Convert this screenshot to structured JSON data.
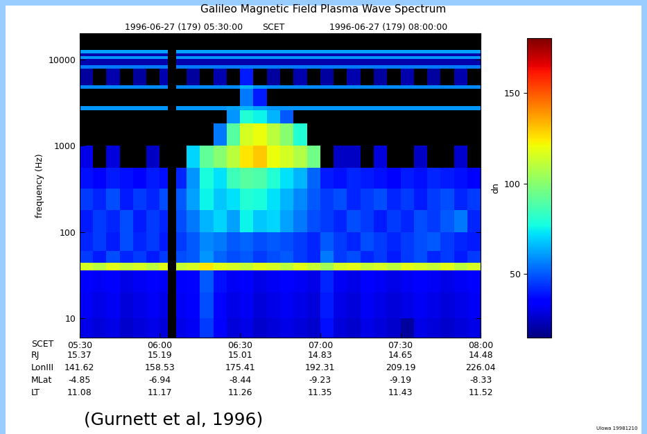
{
  "chart_data": {
    "type": "heatmap",
    "title": "Galileo Magnetic Field Plasma Wave Spectrum",
    "top_labels": [
      "1996-06-27 (179) 05:30:00",
      "SCET",
      "1996-06-27 (179) 08:00:00"
    ],
    "y_label": "frequency (Hz)",
    "log": "y",
    "grid": false,
    "xlim": [
      0,
      150
    ],
    "xticks": [
      {
        "value": 0,
        "label": "05:30"
      },
      {
        "value": 30,
        "label": "06:00"
      },
      {
        "value": 60,
        "label": "06:30"
      },
      {
        "value": 90,
        "label": "07:00"
      },
      {
        "value": 120,
        "label": "07:30"
      },
      {
        "value": 150,
        "label": "08:00"
      }
    ],
    "x_row_label": "SCET",
    "ylim": [
      6,
      20000
    ],
    "yticks": [
      10,
      100,
      1000,
      10000
    ],
    "x_edges": [
      0,
      5,
      10,
      15,
      20,
      25,
      30,
      33,
      36,
      40,
      45,
      50,
      55,
      60,
      65,
      70,
      75,
      80,
      85,
      90,
      95,
      100,
      105,
      110,
      115,
      120,
      125,
      130,
      135,
      140,
      145,
      150
    ],
    "y_edges": [
      6,
      10,
      20,
      36,
      44,
      60,
      100,
      180,
      320,
      560,
      1000,
      1800,
      2600,
      2900,
      4600,
      5000,
      7800,
      8600,
      10200,
      11000,
      11800,
      12800,
      20000
    ],
    "cells": [
      [
        30,
        28,
        30,
        26,
        28,
        30,
        28,
        null,
        30,
        32,
        45,
        35,
        28,
        30,
        26,
        28,
        30,
        28,
        26,
        38,
        28,
        26,
        30,
        28,
        26,
        20,
        30,
        28,
        26,
        28,
        30
      ],
      [
        32,
        30,
        32,
        28,
        30,
        32,
        30,
        null,
        32,
        34,
        48,
        36,
        30,
        32,
        28,
        30,
        32,
        30,
        28,
        40,
        30,
        28,
        32,
        30,
        28,
        30,
        32,
        30,
        28,
        30,
        32
      ],
      [
        35,
        32,
        34,
        30,
        32,
        34,
        32,
        null,
        34,
        36,
        50,
        38,
        32,
        34,
        30,
        32,
        34,
        32,
        30,
        42,
        32,
        30,
        34,
        32,
        30,
        32,
        34,
        32,
        30,
        32,
        34
      ],
      [
        115,
        110,
        118,
        112,
        115,
        110,
        118,
        null,
        112,
        115,
        125,
        118,
        115,
        112,
        118,
        115,
        110,
        118,
        112,
        105,
        115,
        118,
        112,
        115,
        110,
        118,
        115,
        112,
        118,
        110,
        115
      ],
      [
        45,
        40,
        48,
        42,
        45,
        40,
        45,
        null,
        48,
        50,
        60,
        52,
        48,
        50,
        45,
        48,
        50,
        45,
        42,
        55,
        45,
        48,
        42,
        45,
        40,
        45,
        48,
        42,
        45,
        40,
        45
      ],
      [
        42,
        45,
        40,
        48,
        42,
        45,
        40,
        null,
        45,
        50,
        58,
        55,
        50,
        52,
        48,
        50,
        48,
        45,
        42,
        50,
        45,
        42,
        48,
        45,
        42,
        45,
        48,
        50,
        45,
        42,
        40
      ],
      [
        40,
        45,
        42,
        48,
        40,
        45,
        42,
        null,
        48,
        55,
        65,
        70,
        62,
        75,
        68,
        70,
        62,
        55,
        48,
        45,
        42,
        48,
        45,
        40,
        45,
        42,
        48,
        45,
        50,
        55,
        42
      ],
      [
        45,
        42,
        48,
        40,
        45,
        42,
        48,
        null,
        50,
        62,
        75,
        68,
        72,
        80,
        78,
        72,
        65,
        58,
        50,
        45,
        48,
        42,
        45,
        48,
        42,
        45,
        40,
        45,
        48,
        42,
        45
      ],
      [
        38,
        35,
        40,
        38,
        35,
        40,
        38,
        null,
        42,
        60,
        78,
        72,
        85,
        90,
        88,
        80,
        72,
        65,
        52,
        40,
        38,
        42,
        40,
        38,
        35,
        40,
        38,
        42,
        40,
        38,
        35
      ],
      [
        30,
        null,
        28,
        null,
        null,
        25,
        null,
        null,
        null,
        70,
        92,
        100,
        110,
        125,
        130,
        120,
        115,
        108,
        95,
        null,
        25,
        25,
        null,
        28,
        null,
        null,
        25,
        null,
        null,
        26,
        null
      ],
      [
        null,
        null,
        null,
        null,
        null,
        null,
        null,
        null,
        null,
        null,
        null,
        55,
        90,
        115,
        120,
        110,
        100,
        80,
        null,
        null,
        null,
        null,
        null,
        null,
        null,
        null,
        null,
        null,
        null,
        null,
        null
      ],
      [
        null,
        null,
        null,
        null,
        null,
        null,
        null,
        null,
        null,
        null,
        null,
        null,
        60,
        80,
        75,
        65,
        50,
        null,
        null,
        null,
        null,
        null,
        null,
        null,
        null,
        null,
        null,
        null,
        null,
        null,
        null
      ],
      [
        60,
        60,
        60,
        60,
        60,
        60,
        60,
        null,
        60,
        60,
        60,
        60,
        62,
        65,
        62,
        60,
        60,
        60,
        60,
        60,
        60,
        60,
        60,
        60,
        60,
        60,
        60,
        60,
        60,
        60,
        60
      ],
      [
        null,
        null,
        null,
        null,
        null,
        null,
        null,
        null,
        null,
        null,
        null,
        null,
        null,
        55,
        40,
        null,
        null,
        null,
        null,
        null,
        null,
        null,
        null,
        null,
        null,
        null,
        null,
        null,
        null,
        null,
        null
      ],
      [
        58,
        58,
        58,
        58,
        58,
        58,
        58,
        null,
        58,
        58,
        58,
        58,
        58,
        65,
        60,
        58,
        58,
        58,
        58,
        58,
        58,
        58,
        58,
        58,
        58,
        58,
        58,
        58,
        58,
        58,
        58
      ],
      [
        20,
        null,
        22,
        null,
        20,
        null,
        22,
        null,
        null,
        20,
        null,
        22,
        null,
        40,
        null,
        20,
        null,
        22,
        null,
        20,
        null,
        22,
        null,
        20,
        null,
        22,
        null,
        20,
        null,
        22,
        null
      ],
      [
        55,
        55,
        55,
        55,
        55,
        55,
        55,
        null,
        55,
        55,
        55,
        55,
        55,
        55,
        55,
        55,
        55,
        55,
        55,
        55,
        55,
        55,
        55,
        55,
        55,
        55,
        55,
        55,
        55,
        55,
        55
      ],
      [
        22,
        22,
        22,
        22,
        22,
        22,
        22,
        null,
        22,
        22,
        22,
        22,
        22,
        22,
        22,
        22,
        22,
        22,
        22,
        22,
        22,
        22,
        22,
        22,
        22,
        22,
        22,
        22,
        22,
        22,
        22
      ],
      [
        60,
        60,
        60,
        60,
        60,
        60,
        60,
        null,
        60,
        60,
        60,
        60,
        60,
        60,
        60,
        60,
        60,
        60,
        60,
        60,
        60,
        60,
        60,
        60,
        60,
        60,
        60,
        60,
        60,
        60,
        60
      ],
      [
        22,
        22,
        22,
        22,
        22,
        22,
        22,
        null,
        22,
        22,
        22,
        22,
        22,
        22,
        22,
        22,
        22,
        22,
        22,
        22,
        22,
        22,
        22,
        22,
        22,
        22,
        22,
        22,
        22,
        22,
        22
      ],
      [
        62,
        62,
        62,
        62,
        62,
        62,
        62,
        null,
        62,
        62,
        62,
        62,
        62,
        62,
        62,
        62,
        62,
        62,
        62,
        62,
        62,
        62,
        62,
        62,
        62,
        62,
        62,
        62,
        62,
        62,
        62
      ],
      [
        null,
        null,
        null,
        null,
        null,
        null,
        null,
        null,
        null,
        null,
        null,
        null,
        null,
        null,
        null,
        null,
        null,
        null,
        null,
        null,
        null,
        null,
        null,
        null,
        null,
        null,
        null,
        null,
        null,
        null,
        null
      ]
    ],
    "colorbar": {
      "label": "dn",
      "lim": [
        15,
        180
      ],
      "ticks": [
        50,
        100,
        150
      ]
    },
    "ephemeris": [
      {
        "name": "RJ",
        "values": [
          15.37,
          15.19,
          15.01,
          14.83,
          14.65,
          14.48
        ]
      },
      {
        "name": "LonIII",
        "values": [
          141.62,
          158.53,
          175.41,
          192.31,
          209.19,
          226.04
        ]
      },
      {
        "name": "MLat",
        "values": [
          -4.85,
          -6.94,
          -8.44,
          -9.23,
          -9.19,
          -8.33
        ]
      },
      {
        "name": "LT",
        "values": [
          11.08,
          11.17,
          11.26,
          11.35,
          11.43,
          11.52
        ]
      }
    ],
    "annotations": [
      "(Gurnett et al, 1996)",
      "UIowa 19981210"
    ]
  }
}
